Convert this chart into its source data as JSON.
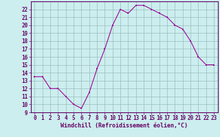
{
  "x": [
    0,
    1,
    2,
    3,
    4,
    5,
    6,
    7,
    8,
    9,
    10,
    11,
    12,
    13,
    14,
    15,
    16,
    17,
    18,
    19,
    20,
    21,
    22,
    23
  ],
  "y": [
    13.5,
    13.5,
    12.0,
    12.0,
    11.0,
    10.0,
    9.5,
    11.5,
    14.5,
    17.0,
    20.0,
    22.0,
    21.5,
    22.5,
    22.5,
    22.0,
    21.5,
    21.0,
    20.0,
    19.5,
    18.0,
    16.0,
    15.0,
    15.0
  ],
  "line_color": "#990099",
  "marker": "s",
  "marker_size": 2,
  "bg_color": "#cceeee",
  "grid_color": "#99bbbb",
  "xlabel": "Windchill (Refroidissement éolien,°C)",
  "xlabel_color": "#660066",
  "tick_color": "#660066",
  "xlim": [
    -0.5,
    23.5
  ],
  "ylim": [
    9,
    23
  ],
  "yticks": [
    9,
    10,
    11,
    12,
    13,
    14,
    15,
    16,
    17,
    18,
    19,
    20,
    21,
    22
  ],
  "xticks": [
    0,
    1,
    2,
    3,
    4,
    5,
    6,
    7,
    8,
    9,
    10,
    11,
    12,
    13,
    14,
    15,
    16,
    17,
    18,
    19,
    20,
    21,
    22,
    23
  ],
  "tick_fontsize": 5.5,
  "xlabel_fontsize": 6.0
}
